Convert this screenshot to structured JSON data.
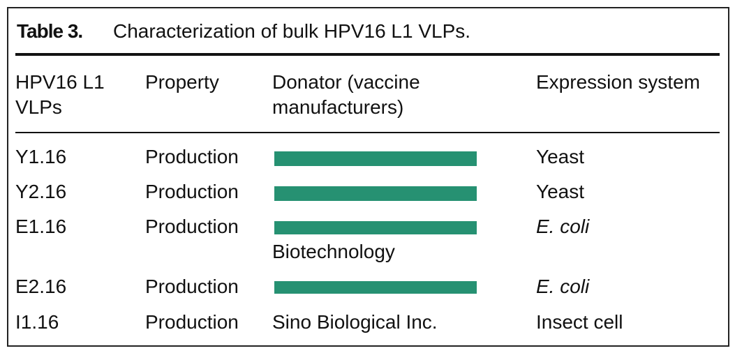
{
  "header": {
    "label": "Table 3.",
    "title": "Characterization of bulk HPV16 L1 VLPs."
  },
  "table": {
    "columns": [
      "HPV16 L1 VLPs",
      "Property",
      "Donator (vaccine manufacturers)",
      "Expression system"
    ],
    "rows": [
      {
        "id": "Y1.16",
        "property": "Production",
        "system": "Yeast"
      },
      {
        "id": "Y2.16",
        "property": "Production",
        "system": "Yeast"
      },
      {
        "id": "E1.16",
        "property": "Production",
        "donator": "Biotechnology",
        "system": "E. coli"
      },
      {
        "id": "E2.16",
        "property": "Production",
        "system": "E. coli"
      },
      {
        "id": "I1.16",
        "property": "Production",
        "donator": "Sino Biological Inc.",
        "system": "Insect cell"
      }
    ]
  }
}
